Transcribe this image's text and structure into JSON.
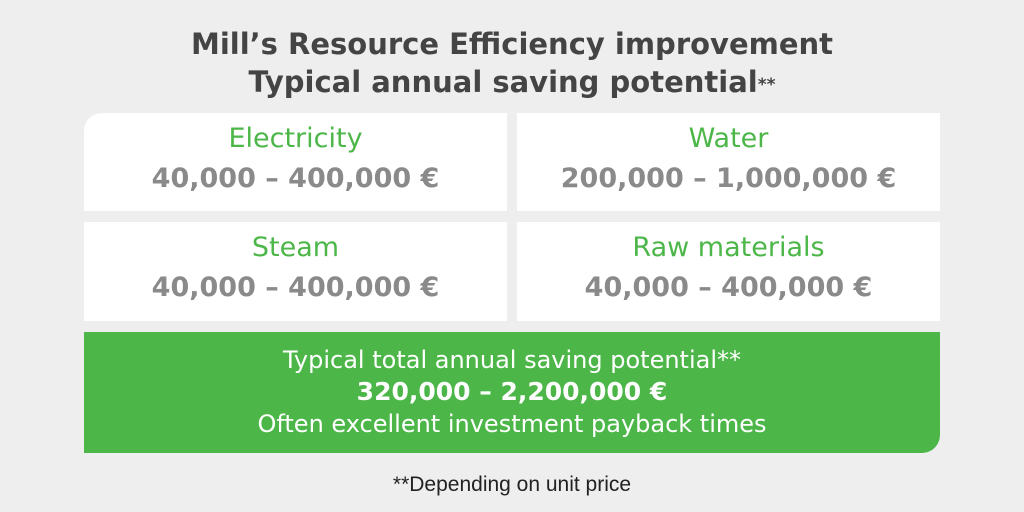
{
  "header": {
    "title_line1": "Mill’s Resource Efficiency improvement",
    "title_line2": "Typical annual saving potential",
    "title_line2_mark": "**"
  },
  "cards": {
    "electricity": {
      "label": "Electricity",
      "value": "40,000 – 400,000 €"
    },
    "water": {
      "label": "Water",
      "value": "200,000 – 1,000,000 €"
    },
    "steam": {
      "label": "Steam",
      "value": "40,000 – 400,000 €"
    },
    "raw_materials": {
      "label": "Raw materials",
      "value": "40,000 – 400,000 €"
    }
  },
  "total": {
    "line1": "Typical total annual saving potential**",
    "line2": "320,000 – 2,200,000 €",
    "line3": "Often excellent investment payback times"
  },
  "footnote": "**Depending on unit price",
  "colors": {
    "accent_green": "#4cb748",
    "background": "#eeeeee",
    "title_text": "#444444",
    "value_text": "#8a8a8a"
  }
}
